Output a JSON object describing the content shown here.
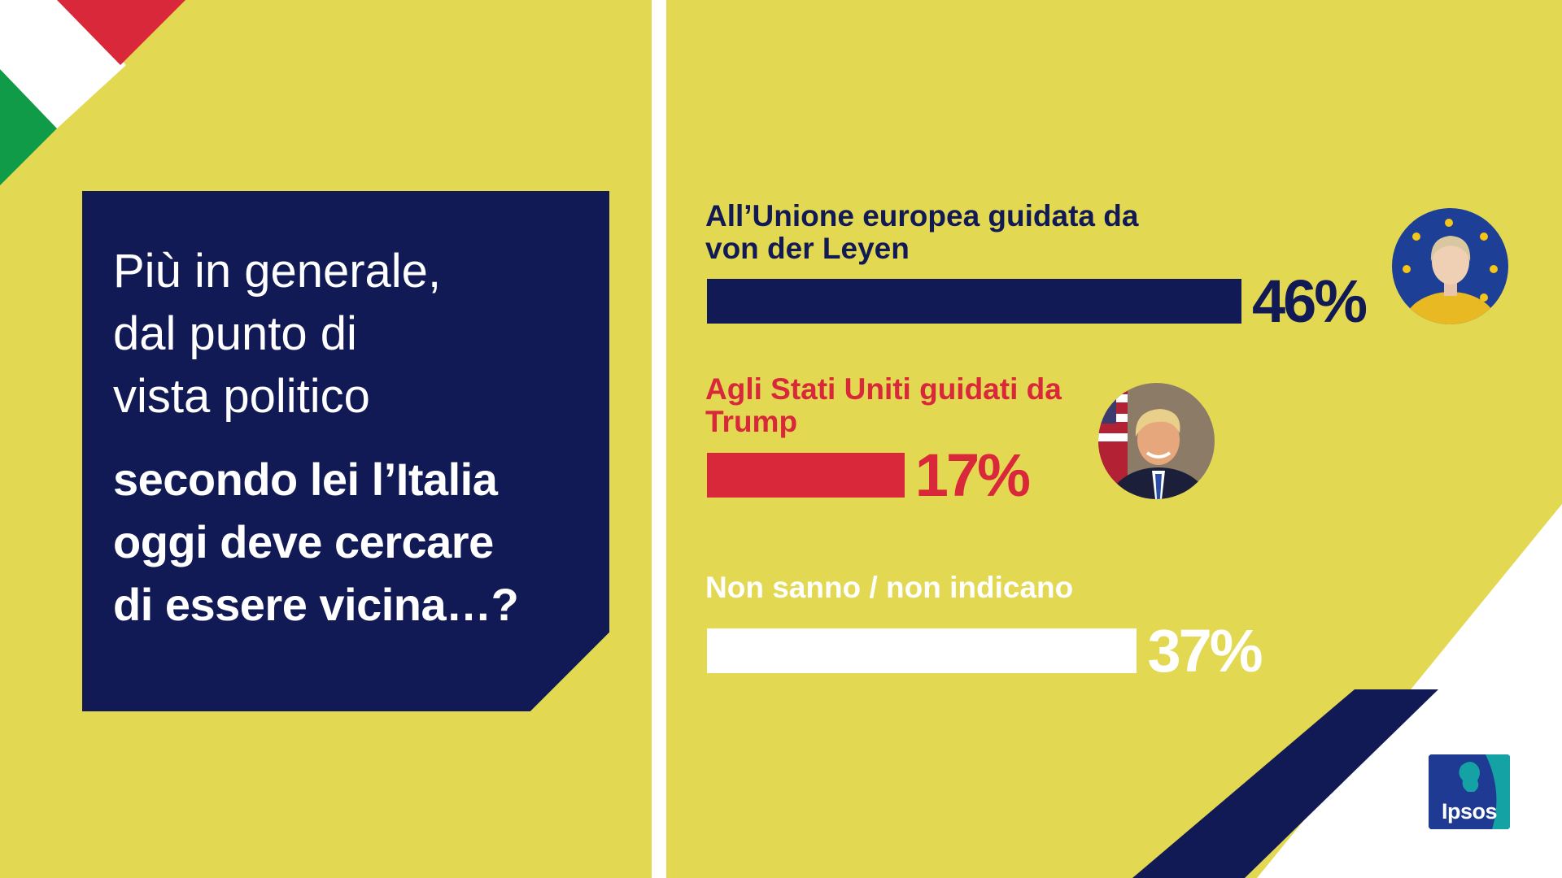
{
  "colors": {
    "background": "#e2d852",
    "navy": "#121a56",
    "red": "#d8283a",
    "white": "#ffffff",
    "flag_green": "#0f9b48",
    "flag_red": "#d8283a",
    "logo_blue": "#1f3a93",
    "logo_teal": "#14a2a5"
  },
  "question": {
    "light_lines": [
      "Più in generale,",
      "dal punto di",
      "vista politico"
    ],
    "bold_lines": [
      "secondo lei l’Italia",
      "oggi deve cercare",
      "di essere vicina…?"
    ]
  },
  "chart_data": {
    "type": "bar",
    "orientation": "horizontal",
    "unit": "%",
    "categories": [
      "All’Unione europea guidata da von der Leyen",
      "Agli Stati Uniti guidati da Trump",
      "Non sanno / non indicano"
    ],
    "values": [
      46,
      17,
      37
    ],
    "value_labels": [
      "46%",
      "17%",
      "37%"
    ],
    "bar_colors": [
      "#121a56",
      "#d8283a",
      "#ffffff"
    ],
    "label_lines": [
      [
        "All’Unione europea guidata da",
        "von der Leyen"
      ],
      [
        "Agli Stati Uniti guidati da",
        "Trump"
      ],
      [
        "Non sanno / non indicano"
      ]
    ],
    "portraits": [
      "von-der-leyen-portrait",
      "trump-portrait",
      ""
    ]
  },
  "logo": {
    "text": "Ipsos"
  }
}
